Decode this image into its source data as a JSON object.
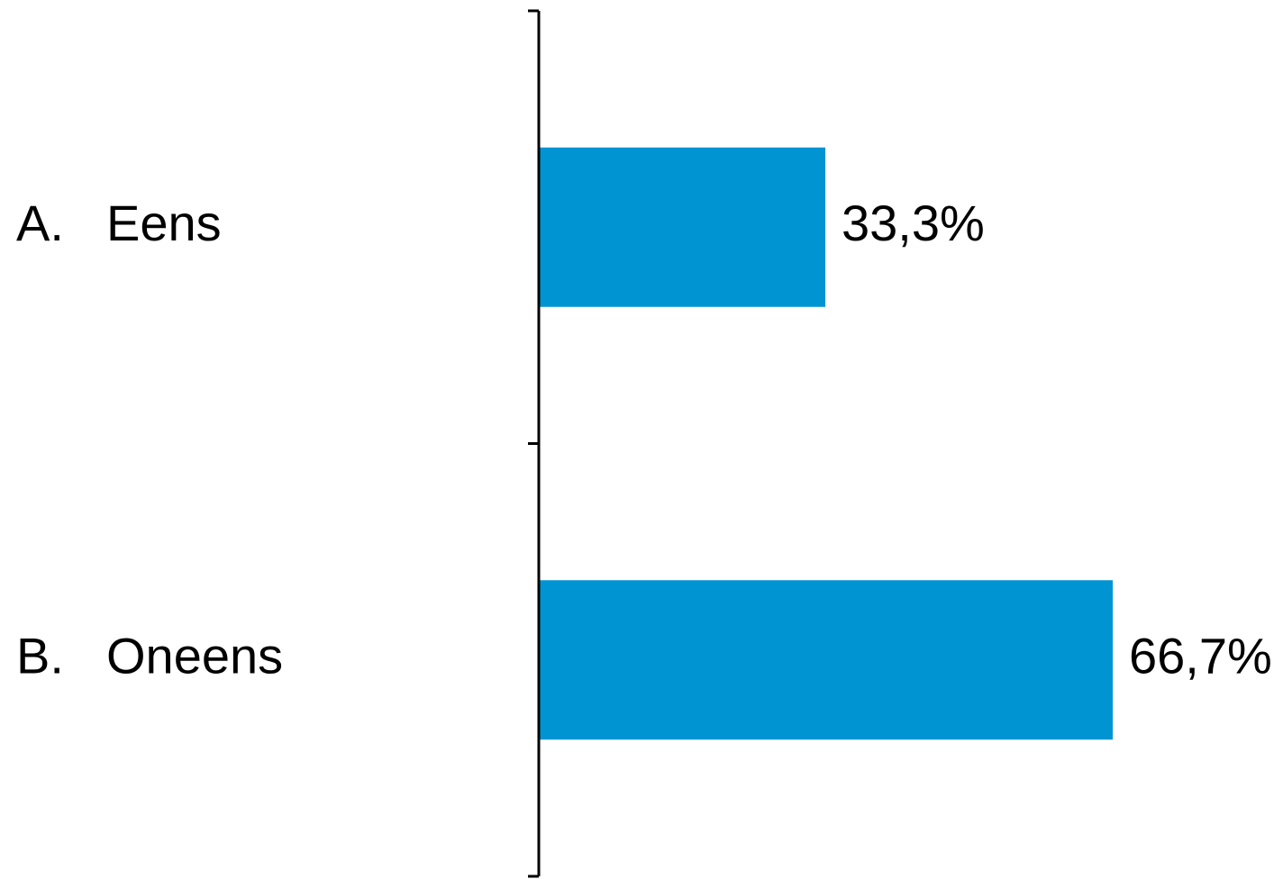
{
  "chart_data": {
    "type": "bar",
    "orientation": "horizontal",
    "categories": [
      {
        "letter": "A.",
        "label": "Eens"
      },
      {
        "letter": "B.",
        "label": "Oneens"
      }
    ],
    "values": [
      33.3,
      66.7
    ],
    "value_labels": [
      "33,3%",
      "66,7%"
    ],
    "xlim": [
      0,
      66.7
    ],
    "bar_color": "#0094D2",
    "axis_color": "#000000",
    "grid": false,
    "legend": "none"
  }
}
